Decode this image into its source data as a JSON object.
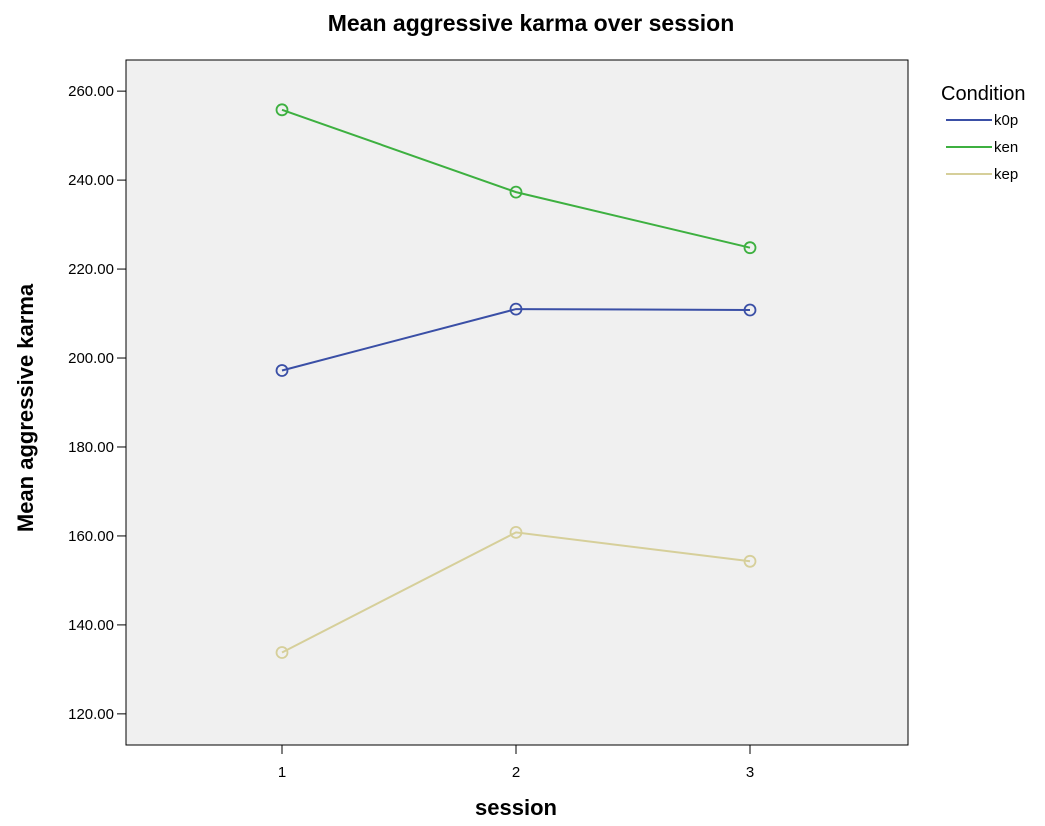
{
  "chart_data": {
    "type": "line",
    "title": "Mean aggressive karma over session",
    "xlabel": "session",
    "ylabel": "Mean aggressive karma",
    "categories": [
      "1",
      "2",
      "3"
    ],
    "ylim": [
      113,
      267
    ],
    "yticks": [
      120,
      140,
      160,
      180,
      200,
      220,
      240,
      260
    ],
    "ytick_labels": [
      "120.00",
      "140.00",
      "160.00",
      "180.00",
      "200.00",
      "220.00",
      "240.00",
      "260.00"
    ],
    "legend_title": "Condition",
    "legend_position": "right",
    "grid": false,
    "series": [
      {
        "name": "k0p",
        "color": "#3a4fa6",
        "values": [
          197.2,
          211.0,
          210.8
        ]
      },
      {
        "name": "ken",
        "color": "#3db040",
        "values": [
          255.8,
          237.3,
          224.8
        ]
      },
      {
        "name": "kep",
        "color": "#d6cf9a",
        "values": [
          133.8,
          160.8,
          154.3
        ]
      }
    ]
  }
}
